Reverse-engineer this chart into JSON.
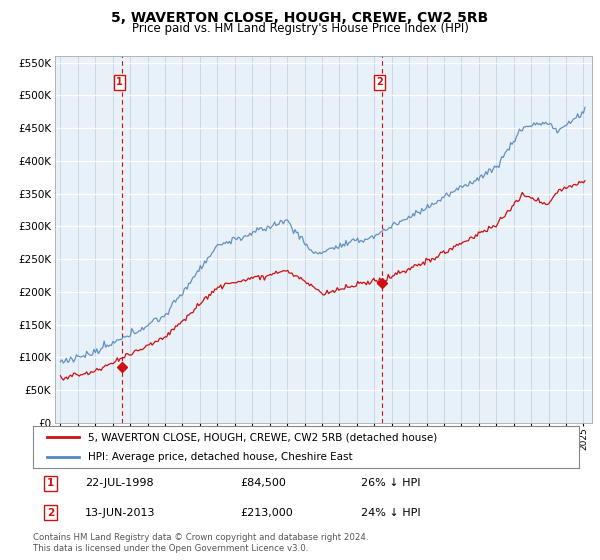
{
  "title": "5, WAVERTON CLOSE, HOUGH, CREWE, CW2 5RB",
  "subtitle": "Price paid vs. HM Land Registry's House Price Index (HPI)",
  "legend_line1": "5, WAVERTON CLOSE, HOUGH, CREWE, CW2 5RB (detached house)",
  "legend_line2": "HPI: Average price, detached house, Cheshire East",
  "footer": "Contains HM Land Registry data © Crown copyright and database right 2024.\nThis data is licensed under the Open Government Licence v3.0.",
  "annotation1": {
    "label": "1",
    "date": "22-JUL-1998",
    "price": 84500,
    "note": "26% ↓ HPI"
  },
  "annotation2": {
    "label": "2",
    "date": "13-JUN-2013",
    "price": 213000,
    "note": "24% ↓ HPI"
  },
  "xmin": 1994.7,
  "xmax": 2025.5,
  "ymin": 0,
  "ymax": 560000,
  "yticks": [
    0,
    50000,
    100000,
    150000,
    200000,
    250000,
    300000,
    350000,
    400000,
    450000,
    500000,
    550000
  ],
  "xticks": [
    1995,
    1996,
    1997,
    1998,
    1999,
    2000,
    2001,
    2002,
    2003,
    2004,
    2005,
    2006,
    2007,
    2008,
    2009,
    2010,
    2011,
    2012,
    2013,
    2014,
    2015,
    2016,
    2017,
    2018,
    2019,
    2020,
    2021,
    2022,
    2023,
    2024,
    2025
  ],
  "hpi_color": "#5588bb",
  "price_color": "#cc1111",
  "vline_color": "#cc1111",
  "annotation_color": "#cc1111",
  "bg_color": "#ddeeff",
  "plot_bg": "#e8f0f8"
}
